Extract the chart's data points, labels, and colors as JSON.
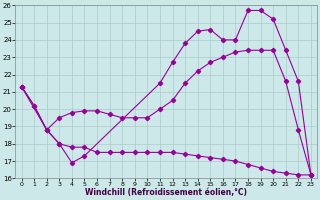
{
  "xlabel": "Windchill (Refroidissement éolien,°C)",
  "bg_color": "#cce8e8",
  "line_color": "#990099",
  "grid_color": "#aacccc",
  "xlim": [
    -0.5,
    23.5
  ],
  "ylim": [
    16,
    26
  ],
  "xticks": [
    0,
    1,
    2,
    3,
    4,
    5,
    6,
    7,
    8,
    9,
    10,
    11,
    12,
    13,
    14,
    15,
    16,
    17,
    18,
    19,
    20,
    21,
    22,
    23
  ],
  "yticks": [
    16,
    17,
    18,
    19,
    20,
    21,
    22,
    23,
    24,
    25,
    26
  ],
  "line1_x": [
    0,
    1,
    2,
    3,
    4,
    5,
    6,
    7,
    8,
    9,
    10,
    11,
    12,
    13,
    14,
    15,
    16,
    17,
    18,
    19,
    20,
    21,
    22,
    23
  ],
  "line1_y": [
    21.3,
    20.2,
    18.8,
    18.0,
    17.8,
    17.8,
    17.5,
    17.5,
    17.5,
    17.5,
    17.5,
    17.5,
    17.5,
    17.4,
    17.3,
    17.2,
    17.1,
    17.0,
    16.8,
    16.6,
    16.4,
    16.3,
    16.2,
    16.2
  ],
  "line2_x": [
    0,
    1,
    2,
    3,
    4,
    5,
    6,
    7,
    8,
    9,
    10,
    11,
    12,
    13,
    14,
    15,
    16,
    17,
    18,
    19,
    20,
    21,
    22,
    23
  ],
  "line2_y": [
    21.3,
    20.2,
    18.8,
    19.5,
    19.8,
    19.9,
    19.9,
    19.7,
    19.5,
    19.5,
    19.5,
    20.0,
    20.5,
    21.5,
    22.2,
    22.7,
    23.0,
    23.3,
    23.4,
    23.4,
    23.4,
    21.6,
    18.8,
    16.2
  ],
  "line3_x": [
    0,
    2,
    3,
    4,
    5,
    11,
    12,
    13,
    14,
    15,
    16,
    17,
    18,
    19,
    20,
    21,
    22,
    23
  ],
  "line3_y": [
    21.3,
    18.8,
    18.0,
    16.9,
    17.3,
    21.5,
    22.7,
    23.8,
    24.5,
    24.6,
    24.0,
    24.0,
    25.7,
    25.7,
    25.2,
    23.4,
    21.6,
    16.2
  ]
}
